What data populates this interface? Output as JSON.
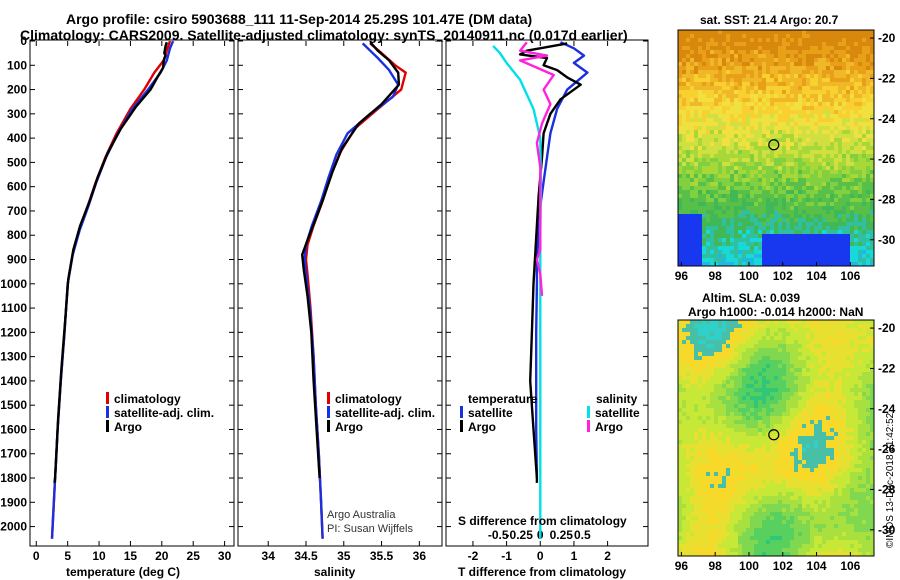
{
  "header": {
    "title_line1": "Argo profile: csiro 5903688_111 11-Sep-2014 25.29S 101.47E (DM data)",
    "title_line2": "Climatology: CARS2009. Satellite-adjusted climatology: synTS_20140911.nc (0.017d earlier)"
  },
  "colors": {
    "climatology": "#e00000",
    "satellite": "#1a2fe0",
    "argo": "#000000",
    "satellite_s": "#00e0e8",
    "argo_s": "#ff22dd"
  },
  "legends": {
    "climatology": "climatology",
    "satellite_adj": "satellite-adj. clim.",
    "argo": "Argo",
    "temperature": "temperature",
    "salinity": "salinity",
    "satellite": "satellite"
  },
  "credits": {
    "line1": "Argo Australia",
    "line2": "PI: Susan Wijffels",
    "imos": "©IMOS 13-Dec-2018 21:42:52"
  },
  "maps": {
    "sst_title": "sat. SST: 21.4 Argo: 20.7",
    "sla_title1": "Altim. SLA: 0.039",
    "sla_title2": "Argo h1000: -0.014 h2000: NaN",
    "lat_ticks": [
      "-20",
      "-22",
      "-24",
      "-26",
      "-28",
      "-30"
    ],
    "lon_ticks": [
      "96",
      "98",
      "100",
      "102",
      "104",
      "106"
    ],
    "argo_position": {
      "lon": 101.47,
      "lat": -25.29
    }
  },
  "chart_data": [
    {
      "type": "line",
      "id": "temperature",
      "xlabel": "temperature (deg C)",
      "ylabel": "",
      "xlim": [
        -1,
        31.5
      ],
      "ylim": [
        2080,
        0
      ],
      "xticks": [
        "0",
        "5",
        "10",
        "15",
        "20",
        "25",
        "30"
      ],
      "yticks": [
        "0",
        "100",
        "200",
        "300",
        "400",
        "500",
        "600",
        "700",
        "800",
        "900",
        "1000",
        "1100",
        "1200",
        "1300",
        "1400",
        "1500",
        "1600",
        "1700",
        "1800",
        "1900",
        "2000"
      ],
      "series": [
        {
          "name": "climatology",
          "color": "climatology",
          "points": [
            [
              21.3,
              0
            ],
            [
              20.9,
              30
            ],
            [
              20.3,
              80
            ],
            [
              18.8,
              130
            ],
            [
              17.2,
              200
            ],
            [
              15.0,
              280
            ],
            [
              12.8,
              380
            ],
            [
              11.0,
              480
            ],
            [
              9.5,
              580
            ],
            [
              8.2,
              680
            ],
            [
              6.8,
              780
            ],
            [
              5.8,
              880
            ],
            [
              5.0,
              1000
            ],
            [
              4.5,
              1200
            ],
            [
              3.9,
              1400
            ],
            [
              3.4,
              1600
            ],
            [
              3.0,
              1800
            ],
            [
              2.6,
              2000
            ],
            [
              2.5,
              2050
            ]
          ]
        },
        {
          "name": "satellite-adj. clim.",
          "color": "satellite",
          "points": [
            [
              21.8,
              0
            ],
            [
              21.3,
              30
            ],
            [
              20.8,
              80
            ],
            [
              19.8,
              130
            ],
            [
              17.8,
              200
            ],
            [
              15.3,
              280
            ],
            [
              13.0,
              380
            ],
            [
              11.1,
              480
            ],
            [
              9.6,
              580
            ],
            [
              8.3,
              680
            ],
            [
              6.9,
              780
            ],
            [
              5.8,
              880
            ],
            [
              5.0,
              1000
            ],
            [
              4.5,
              1200
            ],
            [
              3.9,
              1400
            ],
            [
              3.4,
              1600
            ],
            [
              3.0,
              1800
            ],
            [
              2.6,
              2000
            ],
            [
              2.5,
              2050
            ]
          ]
        },
        {
          "name": "Argo",
          "color": "argo",
          "points": [
            [
              20.8,
              5
            ],
            [
              20.6,
              20
            ],
            [
              20.4,
              50
            ],
            [
              20.6,
              60
            ],
            [
              20.3,
              80
            ],
            [
              20.2,
              110
            ],
            [
              19.5,
              140
            ],
            [
              18.2,
              200
            ],
            [
              15.9,
              270
            ],
            [
              13.5,
              360
            ],
            [
              11.4,
              460
            ],
            [
              9.8,
              560
            ],
            [
              8.5,
              660
            ],
            [
              7.0,
              760
            ],
            [
              5.9,
              860
            ],
            [
              5.1,
              980
            ],
            [
              4.6,
              1150
            ],
            [
              4.0,
              1350
            ],
            [
              3.5,
              1550
            ],
            [
              3.2,
              1700
            ],
            [
              3.0,
              1800
            ],
            [
              2.9,
              1820
            ]
          ]
        }
      ]
    },
    {
      "type": "line",
      "id": "salinity",
      "xlabel": "salinity",
      "xlim": [
        33.6,
        36.3
      ],
      "ylim": [
        2080,
        0
      ],
      "xticks": [
        "34",
        "34.5",
        "35",
        "35.5",
        "36"
      ],
      "series": [
        {
          "name": "climatology",
          "color": "climatology",
          "points": [
            [
              35.35,
              10
            ],
            [
              35.5,
              50
            ],
            [
              35.68,
              100
            ],
            [
              35.82,
              130
            ],
            [
              35.76,
              200
            ],
            [
              35.45,
              280
            ],
            [
              35.15,
              360
            ],
            [
              34.95,
              460
            ],
            [
              34.82,
              560
            ],
            [
              34.72,
              660
            ],
            [
              34.6,
              760
            ],
            [
              34.52,
              840
            ],
            [
              34.5,
              900
            ],
            [
              34.52,
              960
            ],
            [
              34.56,
              1100
            ],
            [
              34.6,
              1300
            ],
            [
              34.63,
              1500
            ],
            [
              34.67,
              1700
            ],
            [
              34.7,
              1900
            ],
            [
              34.72,
              2050
            ]
          ]
        },
        {
          "name": "satellite-adj. clim.",
          "color": "satellite",
          "points": [
            [
              35.25,
              10
            ],
            [
              35.35,
              40
            ],
            [
              35.45,
              70
            ],
            [
              35.6,
              120
            ],
            [
              35.72,
              180
            ],
            [
              35.65,
              230
            ],
            [
              35.35,
              300
            ],
            [
              35.05,
              380
            ],
            [
              34.9,
              470
            ],
            [
              34.8,
              560
            ],
            [
              34.7,
              660
            ],
            [
              34.58,
              760
            ],
            [
              34.5,
              840
            ],
            [
              34.48,
              900
            ],
            [
              34.5,
              960
            ],
            [
              34.55,
              1100
            ],
            [
              34.6,
              1300
            ],
            [
              34.63,
              1500
            ],
            [
              34.67,
              1700
            ],
            [
              34.7,
              1900
            ],
            [
              34.72,
              2050
            ]
          ]
        },
        {
          "name": "Argo",
          "color": "argo",
          "points": [
            [
              35.35,
              5
            ],
            [
              35.45,
              40
            ],
            [
              35.6,
              80
            ],
            [
              35.72,
              130
            ],
            [
              35.73,
              180
            ],
            [
              35.5,
              260
            ],
            [
              35.2,
              340
            ],
            [
              34.98,
              440
            ],
            [
              34.85,
              540
            ],
            [
              34.74,
              640
            ],
            [
              34.62,
              740
            ],
            [
              34.52,
              820
            ],
            [
              34.45,
              880
            ],
            [
              34.47,
              940
            ],
            [
              34.52,
              1050
            ],
            [
              34.57,
              1200
            ],
            [
              34.6,
              1400
            ],
            [
              34.64,
              1600
            ],
            [
              34.68,
              1800
            ]
          ]
        }
      ]
    },
    {
      "type": "line",
      "id": "differences",
      "xlabel": "T difference from climatology",
      "xlabel_top": "S difference from climatology",
      "xlim": [
        -2.8,
        3.2
      ],
      "ylim": [
        2080,
        0
      ],
      "xticks": [
        "-2",
        "-1",
        "0",
        "1",
        "2"
      ],
      "xticks_s": [
        "-0.5",
        "-0.25",
        "0",
        "0.25",
        "0.5"
      ],
      "series": [
        {
          "name": "satellite (T)",
          "color": "satellite",
          "points": [
            [
              0.6,
              5
            ],
            [
              1.0,
              30
            ],
            [
              1.3,
              60
            ],
            [
              1.0,
              90
            ],
            [
              1.4,
              130
            ],
            [
              0.8,
              200
            ],
            [
              0.5,
              280
            ],
            [
              0.3,
              380
            ],
            [
              0.2,
              480
            ],
            [
              0.1,
              580
            ],
            [
              0.0,
              680
            ],
            [
              -0.05,
              800
            ],
            [
              -0.1,
              900
            ],
            [
              -0.1,
              1000
            ],
            [
              -0.12,
              1200
            ],
            [
              -0.12,
              1400
            ],
            [
              -0.12,
              1600
            ],
            [
              -0.1,
              1800
            ]
          ]
        },
        {
          "name": "Argo (T)",
          "color": "argo",
          "points": [
            [
              0.8,
              10
            ],
            [
              -0.4,
              40
            ],
            [
              -0.6,
              55
            ],
            [
              0.2,
              70
            ],
            [
              0.1,
              100
            ],
            [
              0.5,
              120
            ],
            [
              0.8,
              150
            ],
            [
              1.2,
              180
            ],
            [
              0.6,
              240
            ],
            [
              0.3,
              300
            ],
            [
              0.1,
              380
            ],
            [
              0.05,
              480
            ],
            [
              0.0,
              560
            ],
            [
              -0.05,
              640
            ],
            [
              -0.1,
              760
            ],
            [
              -0.15,
              880
            ],
            [
              -0.2,
              1000
            ],
            [
              -0.25,
              1200
            ],
            [
              -0.3,
              1400
            ],
            [
              -0.2,
              1600
            ],
            [
              -0.1,
              1800
            ],
            [
              -0.1,
              1820
            ]
          ]
        },
        {
          "name": "satellite (S)",
          "color": "satellite_s",
          "points": [
            [
              -1.4,
              20
            ],
            [
              -1.2,
              50
            ],
            [
              -1.0,
              90
            ],
            [
              -0.6,
              160
            ],
            [
              -0.2,
              280
            ],
            [
              0.0,
              400
            ],
            [
              0.02,
              600
            ],
            [
              0.0,
              800
            ],
            [
              0.0,
              1000
            ],
            [
              0.0,
              1200
            ],
            [
              0.0,
              1400
            ],
            [
              0.0,
              1600
            ],
            [
              0.0,
              1800
            ],
            [
              0.0,
              2000
            ],
            [
              0.0,
              2050
            ]
          ]
        },
        {
          "name": "Argo (S)",
          "color": "argo_s",
          "points": [
            [
              -0.4,
              5
            ],
            [
              -0.6,
              40
            ],
            [
              0.2,
              60
            ],
            [
              -0.6,
              80
            ],
            [
              0.4,
              140
            ],
            [
              0.1,
              200
            ],
            [
              0.3,
              260
            ],
            [
              0.05,
              340
            ],
            [
              -0.1,
              420
            ],
            [
              0.0,
              520
            ],
            [
              0.0,
              640
            ],
            [
              0.0,
              760
            ],
            [
              0.0,
              860
            ],
            [
              -0.1,
              900
            ],
            [
              0.0,
              960
            ],
            [
              0.05,
              1050
            ]
          ]
        }
      ]
    }
  ]
}
